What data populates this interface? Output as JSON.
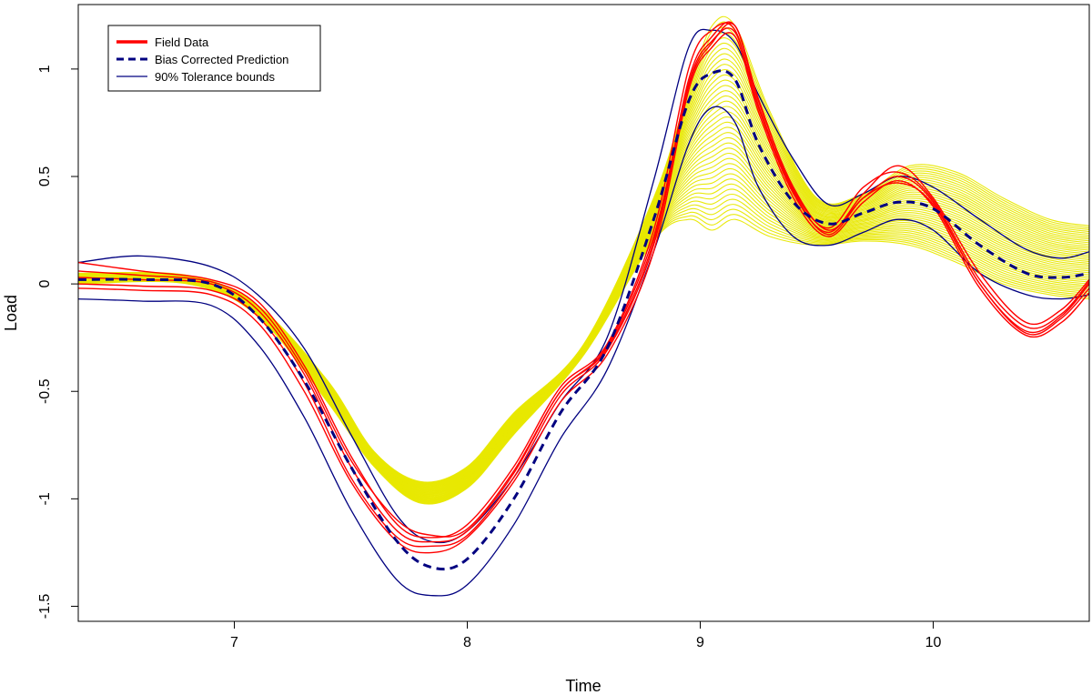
{
  "chart_data": {
    "type": "line",
    "title": "",
    "xlabel": "Time",
    "ylabel": "Load",
    "xlim": [
      6.33,
      10.67
    ],
    "ylim": [
      -1.57,
      1.3
    ],
    "grid": false,
    "legend_placement": "top-left",
    "x_ticks": [
      {
        "value": 7,
        "label": "7"
      },
      {
        "value": 8,
        "label": "8"
      },
      {
        "value": 9,
        "label": "9"
      },
      {
        "value": 10,
        "label": "10"
      }
    ],
    "y_ticks": [
      {
        "value": -1.5,
        "label": "-1.5"
      },
      {
        "value": -1,
        "label": "-1"
      },
      {
        "value": -0.5,
        "label": "-0.5"
      },
      {
        "value": 0,
        "label": "0"
      },
      {
        "value": 0.5,
        "label": "0.5"
      },
      {
        "value": 1,
        "label": "1"
      }
    ],
    "legend": [
      {
        "label": "Field Data",
        "color": "#ff0000",
        "style": "solid-thick"
      },
      {
        "label": "Bias Corrected Prediction",
        "color": "#000080",
        "style": "dashed"
      },
      {
        "label": "90% Tolerance bounds",
        "color": "#000080",
        "style": "solid-thin"
      }
    ],
    "colors": {
      "field": "#ff0000",
      "prediction": "#000080",
      "bounds": "#000080",
      "simulations": "#e8e800"
    },
    "simulation_band": {
      "color": "#e8e800",
      "count": 40,
      "lower": {
        "x": [
          6.33,
          6.8,
          7.1,
          7.4,
          7.6,
          7.8,
          8.0,
          8.2,
          8.5,
          8.8,
          8.95,
          9.05,
          9.15,
          9.3,
          9.5,
          9.7,
          9.9,
          10.1,
          10.3,
          10.5,
          10.67
        ],
        "y": [
          0.0,
          0.0,
          -0.15,
          -0.55,
          -0.85,
          -1.02,
          -0.95,
          -0.7,
          -0.33,
          0.2,
          0.3,
          0.25,
          0.3,
          0.22,
          0.18,
          0.2,
          0.18,
          0.1,
          0.0,
          -0.05,
          -0.07
        ]
      },
      "upper": {
        "x": [
          6.33,
          6.8,
          7.1,
          7.4,
          7.6,
          7.8,
          8.0,
          8.2,
          8.5,
          8.8,
          8.95,
          9.05,
          9.15,
          9.3,
          9.5,
          9.7,
          9.9,
          10.1,
          10.3,
          10.5,
          10.67
        ],
        "y": [
          0.05,
          0.04,
          -0.1,
          -0.45,
          -0.78,
          -0.92,
          -0.85,
          -0.6,
          -0.28,
          0.4,
          0.9,
          1.2,
          1.2,
          0.8,
          0.4,
          0.42,
          0.55,
          0.52,
          0.4,
          0.3,
          0.27
        ]
      }
    },
    "series": [
      {
        "name": "Bias Corrected Prediction",
        "x": [
          6.33,
          6.6,
          6.9,
          7.1,
          7.3,
          7.5,
          7.7,
          7.85,
          8.0,
          8.2,
          8.4,
          8.6,
          8.8,
          8.95,
          9.05,
          9.15,
          9.25,
          9.4,
          9.55,
          9.7,
          9.85,
          10.0,
          10.2,
          10.4,
          10.55,
          10.67
        ],
        "y": [
          0.02,
          0.02,
          0.0,
          -0.15,
          -0.45,
          -0.85,
          -1.2,
          -1.32,
          -1.28,
          -1.0,
          -0.6,
          -0.3,
          0.3,
          0.85,
          0.98,
          0.95,
          0.65,
          0.38,
          0.28,
          0.33,
          0.38,
          0.35,
          0.18,
          0.05,
          0.03,
          0.05
        ]
      },
      {
        "name": "90% Tolerance bounds",
        "x": [
          6.33,
          6.6,
          6.9,
          7.1,
          7.3,
          7.5,
          7.7,
          7.85,
          8.0,
          8.2,
          8.4,
          8.6,
          8.8,
          8.95,
          9.05,
          9.15,
          9.25,
          9.4,
          9.55,
          9.7,
          9.85,
          10.0,
          10.2,
          10.4,
          10.55,
          10.67
        ],
        "y": [
          0.1,
          0.13,
          0.08,
          -0.05,
          -0.3,
          -0.7,
          -1.08,
          -1.2,
          -1.15,
          -0.9,
          -0.55,
          -0.25,
          0.48,
          1.1,
          1.18,
          1.12,
          0.88,
          0.58,
          0.37,
          0.42,
          0.5,
          0.45,
          0.3,
          0.16,
          0.12,
          0.15
        ]
      },
      {
        "name": "90% Tolerance bounds",
        "x": [
          6.33,
          6.6,
          6.9,
          7.1,
          7.3,
          7.5,
          7.7,
          7.85,
          8.0,
          8.2,
          8.4,
          8.6,
          8.8,
          8.95,
          9.05,
          9.15,
          9.25,
          9.4,
          9.55,
          9.7,
          9.85,
          10.0,
          10.2,
          10.4,
          10.55,
          10.67
        ],
        "y": [
          -0.07,
          -0.08,
          -0.1,
          -0.28,
          -0.62,
          -1.05,
          -1.38,
          -1.45,
          -1.4,
          -1.12,
          -0.72,
          -0.4,
          0.15,
          0.65,
          0.82,
          0.75,
          0.45,
          0.22,
          0.18,
          0.24,
          0.3,
          0.25,
          0.05,
          -0.05,
          -0.07,
          -0.05
        ]
      },
      {
        "name": "Field Data",
        "x": [
          6.33,
          6.6,
          6.9,
          7.1,
          7.3,
          7.5,
          7.7,
          7.85,
          8.0,
          8.2,
          8.4,
          8.6,
          8.8,
          8.95,
          9.05,
          9.15,
          9.25,
          9.4,
          9.55,
          9.7,
          9.85,
          10.0,
          10.2,
          10.4,
          10.55,
          10.67
        ],
        "y": [
          0.03,
          0.02,
          0.0,
          -0.12,
          -0.42,
          -0.85,
          -1.15,
          -1.2,
          -1.15,
          -0.88,
          -0.5,
          -0.3,
          0.2,
          0.95,
          1.15,
          1.2,
          0.85,
          0.45,
          0.25,
          0.4,
          0.5,
          0.38,
          0.0,
          -0.22,
          -0.15,
          0.0
        ]
      },
      {
        "name": "Field Data",
        "x": [
          6.33,
          6.6,
          6.9,
          7.1,
          7.3,
          7.5,
          7.7,
          7.85,
          8.0,
          8.2,
          8.4,
          8.6,
          8.8,
          8.95,
          9.05,
          9.15,
          9.25,
          9.4,
          9.55,
          9.7,
          9.85,
          10.0,
          10.2,
          10.4,
          10.55,
          10.67
        ],
        "y": [
          0.1,
          0.06,
          0.02,
          -0.08,
          -0.38,
          -0.8,
          -1.12,
          -1.18,
          -1.12,
          -0.85,
          -0.48,
          -0.28,
          0.25,
          1.0,
          1.18,
          1.18,
          0.82,
          0.42,
          0.24,
          0.42,
          0.55,
          0.4,
          0.05,
          -0.18,
          -0.12,
          0.02
        ]
      },
      {
        "name": "Field Data",
        "x": [
          6.33,
          6.6,
          6.9,
          7.1,
          7.3,
          7.5,
          7.7,
          7.85,
          8.0,
          8.2,
          8.4,
          8.6,
          8.8,
          8.95,
          9.05,
          9.15,
          9.25,
          9.4,
          9.55,
          9.7,
          9.85,
          10.0,
          10.2,
          10.4,
          10.55,
          10.67
        ],
        "y": [
          -0.02,
          -0.03,
          -0.05,
          -0.18,
          -0.5,
          -0.92,
          -1.2,
          -1.25,
          -1.18,
          -0.92,
          -0.55,
          -0.33,
          0.15,
          0.9,
          1.1,
          1.15,
          0.8,
          0.4,
          0.22,
          0.38,
          0.48,
          0.36,
          -0.02,
          -0.24,
          -0.18,
          -0.04
        ]
      },
      {
        "name": "Field Data",
        "x": [
          6.33,
          6.6,
          6.9,
          7.1,
          7.3,
          7.5,
          7.7,
          7.85,
          8.0,
          8.2,
          8.4,
          8.6,
          8.8,
          8.95,
          9.05,
          9.15,
          9.25,
          9.4,
          9.55,
          9.7,
          9.85,
          10.0,
          10.2,
          10.4,
          10.55,
          10.67
        ],
        "y": [
          0.06,
          0.04,
          0.01,
          -0.1,
          -0.4,
          -0.82,
          -1.1,
          -1.17,
          -1.14,
          -0.87,
          -0.5,
          -0.29,
          0.22,
          0.92,
          1.12,
          1.2,
          0.86,
          0.44,
          0.26,
          0.45,
          0.52,
          0.39,
          0.02,
          -0.2,
          -0.14,
          0.01
        ]
      },
      {
        "name": "Field Data",
        "x": [
          6.33,
          6.6,
          6.9,
          7.1,
          7.3,
          7.5,
          7.7,
          7.85,
          8.0,
          8.2,
          8.4,
          8.6,
          8.8,
          8.95,
          9.05,
          9.15,
          9.25,
          9.4,
          9.55,
          9.7,
          9.85,
          10.0,
          10.2,
          10.4,
          10.55,
          10.67
        ],
        "y": [
          0.0,
          -0.01,
          -0.03,
          -0.15,
          -0.46,
          -0.9,
          -1.18,
          -1.22,
          -1.17,
          -0.9,
          -0.52,
          -0.31,
          0.18,
          0.93,
          1.13,
          1.17,
          0.83,
          0.43,
          0.23,
          0.4,
          0.47,
          0.37,
          0.0,
          -0.23,
          -0.16,
          -0.02
        ]
      }
    ]
  }
}
